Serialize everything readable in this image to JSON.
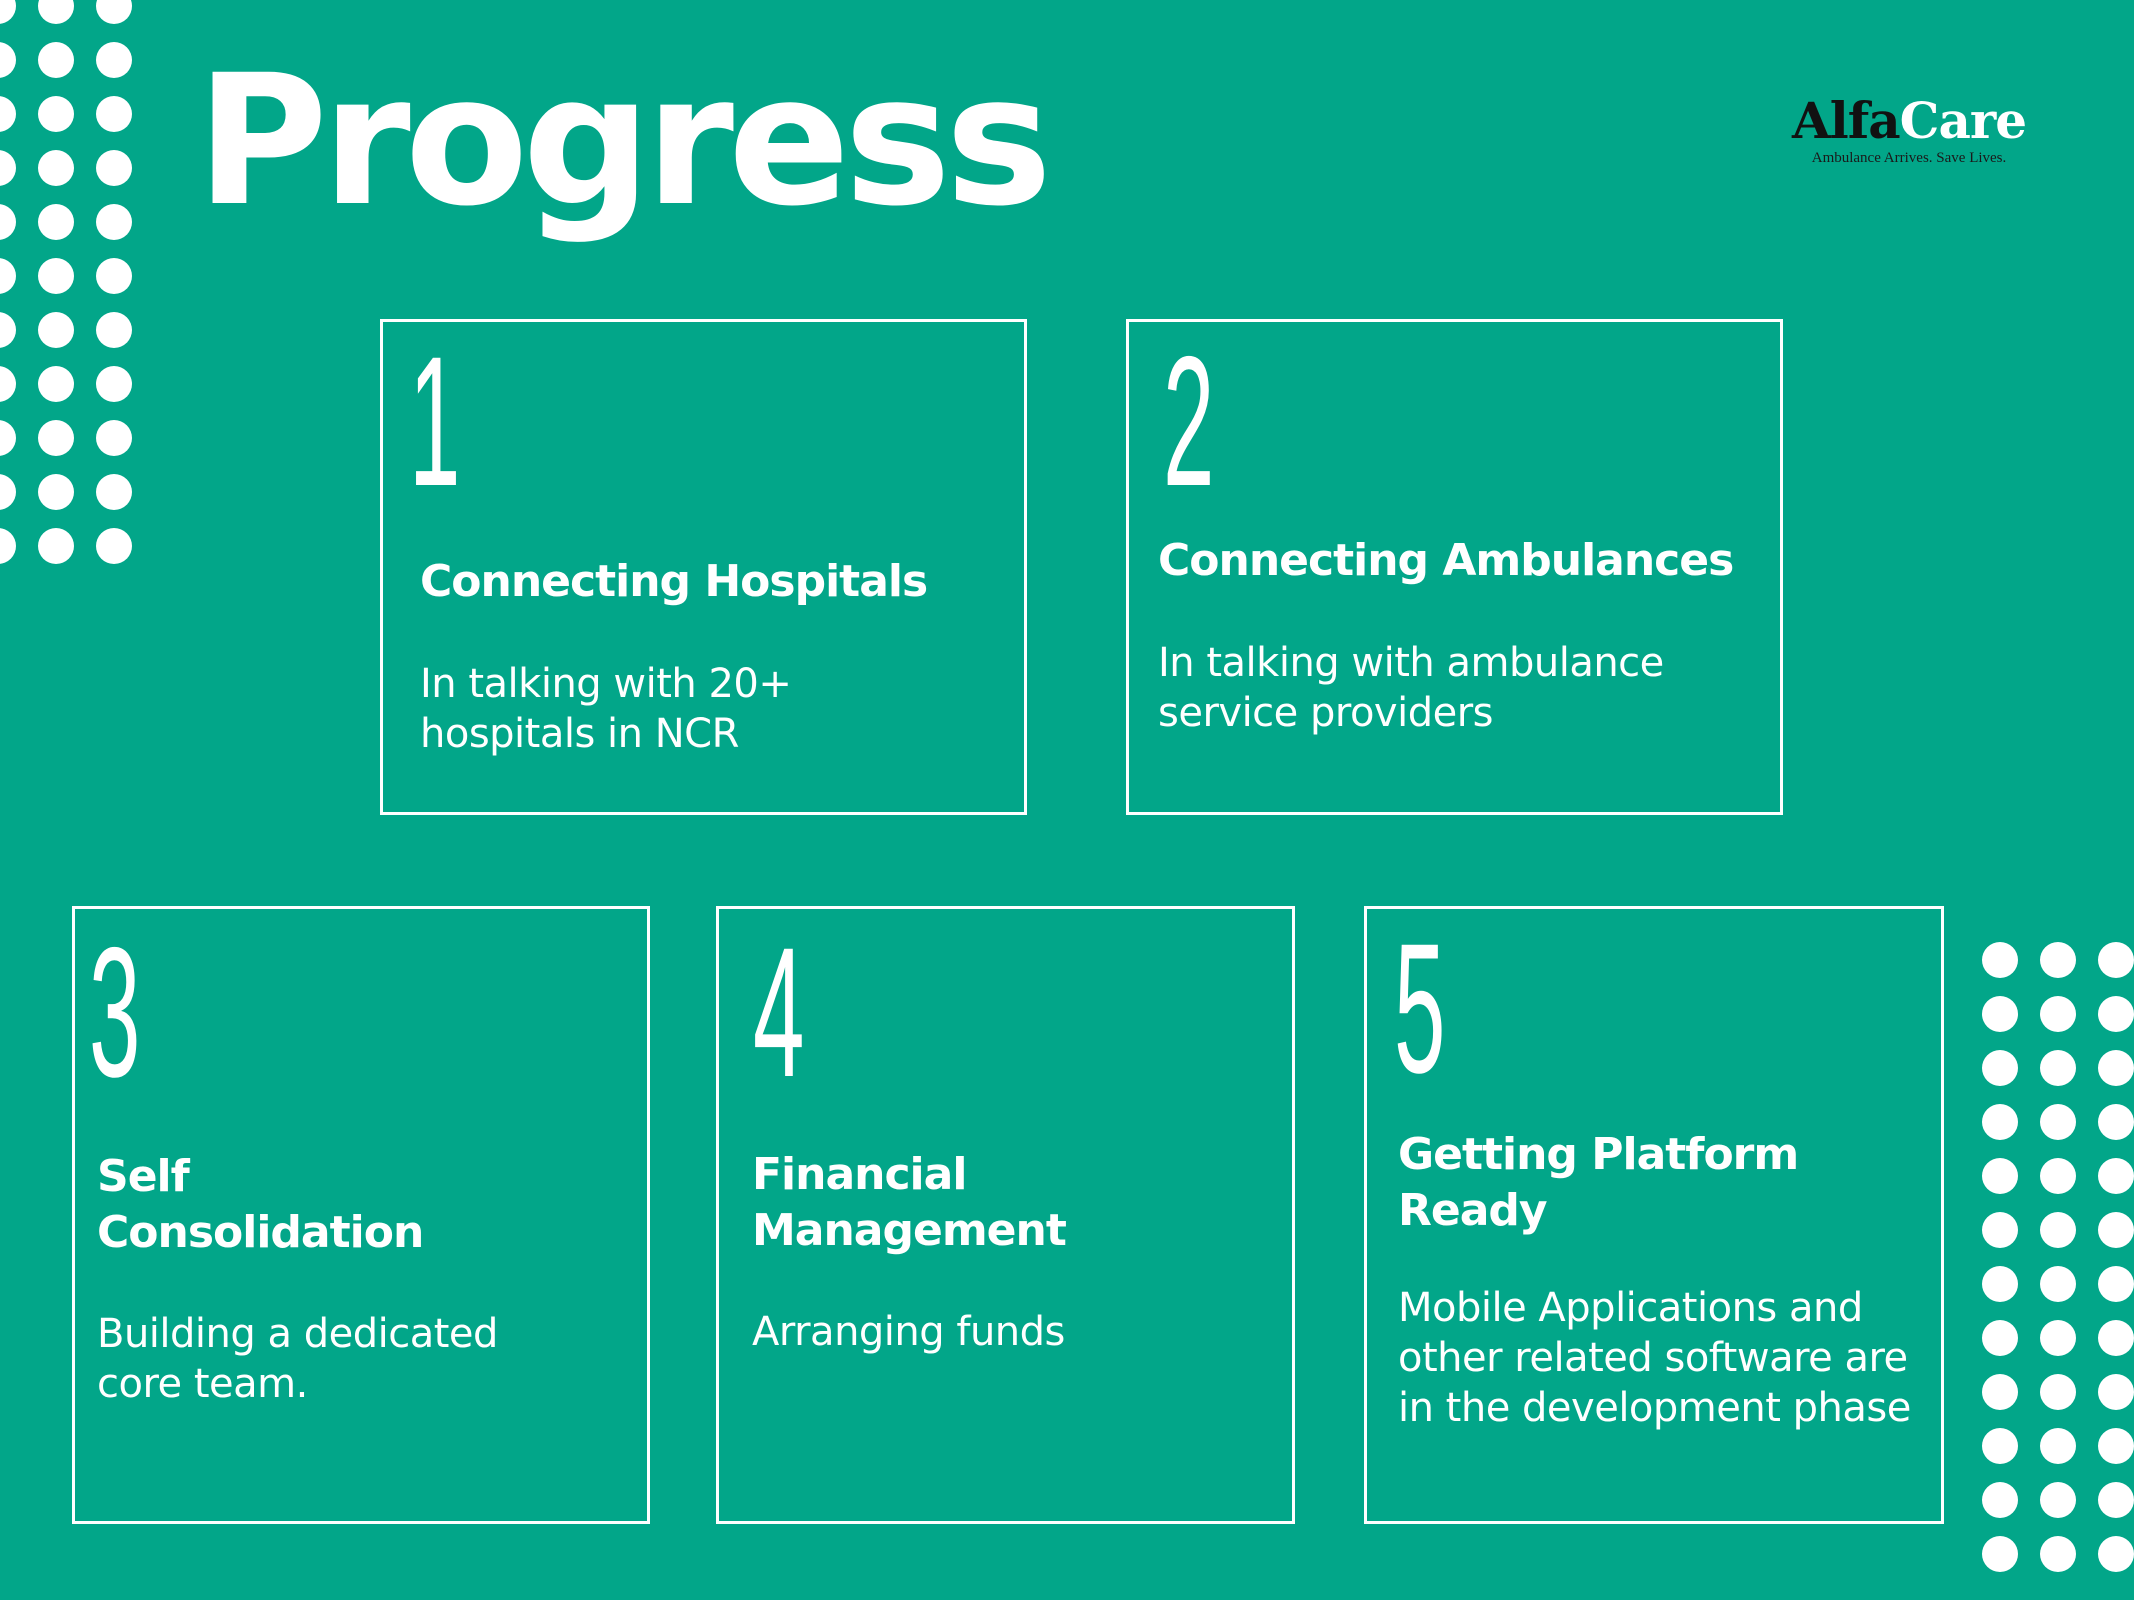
{
  "slide": {
    "title": "Progress",
    "background_color": "#02A689",
    "text_color": "#FFFFFF"
  },
  "logo": {
    "name_part1": "Alfa",
    "name_part2": "Care",
    "tagline": "Ambulance Arrives. Save Lives."
  },
  "cards": [
    {
      "number": "1",
      "title": "Connecting Hospitals",
      "description": "In talking with 20+ hospitals in NCR"
    },
    {
      "number": "2",
      "title": "Connecting Ambulances",
      "description": "In talking with ambulance service providers"
    },
    {
      "number": "3",
      "title": "Self Consolidation",
      "description": "Building a dedicated core team."
    },
    {
      "number": "4",
      "title": "Financial Management",
      "description": "Arranging funds"
    },
    {
      "number": "5",
      "title": "Getting Platform Ready",
      "description": "Mobile Applications and other related software are in the development phase"
    }
  ]
}
